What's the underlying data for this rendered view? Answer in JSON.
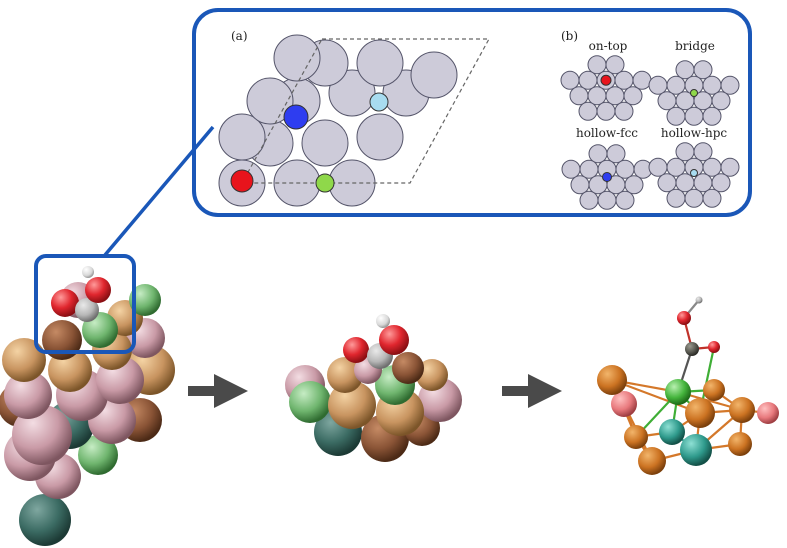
{
  "panel_a": {
    "label": "(a)"
  },
  "panel_b": {
    "label": "(b)",
    "sites": [
      {
        "name": "on-top",
        "marker": "#e8141c"
      },
      {
        "name": "bridge",
        "marker": "#8fd84a"
      },
      {
        "name": "hollow-fcc",
        "marker": "#2e3df0"
      },
      {
        "name": "hollow-hpc",
        "marker": "#a8dcf0"
      }
    ]
  },
  "colors": {
    "frame": "#1a57b8",
    "substrate_atom": "#cdcbd9",
    "ontop": "#e8141c",
    "bridge": "#8fd84a",
    "fcc": "#2e3df0",
    "hcp": "#a8dcf0",
    "arrow": "#4a4a4a"
  },
  "flow": {
    "stages": [
      "cluster",
      "adsorbed-cluster",
      "ball-and-stick-graph"
    ]
  }
}
